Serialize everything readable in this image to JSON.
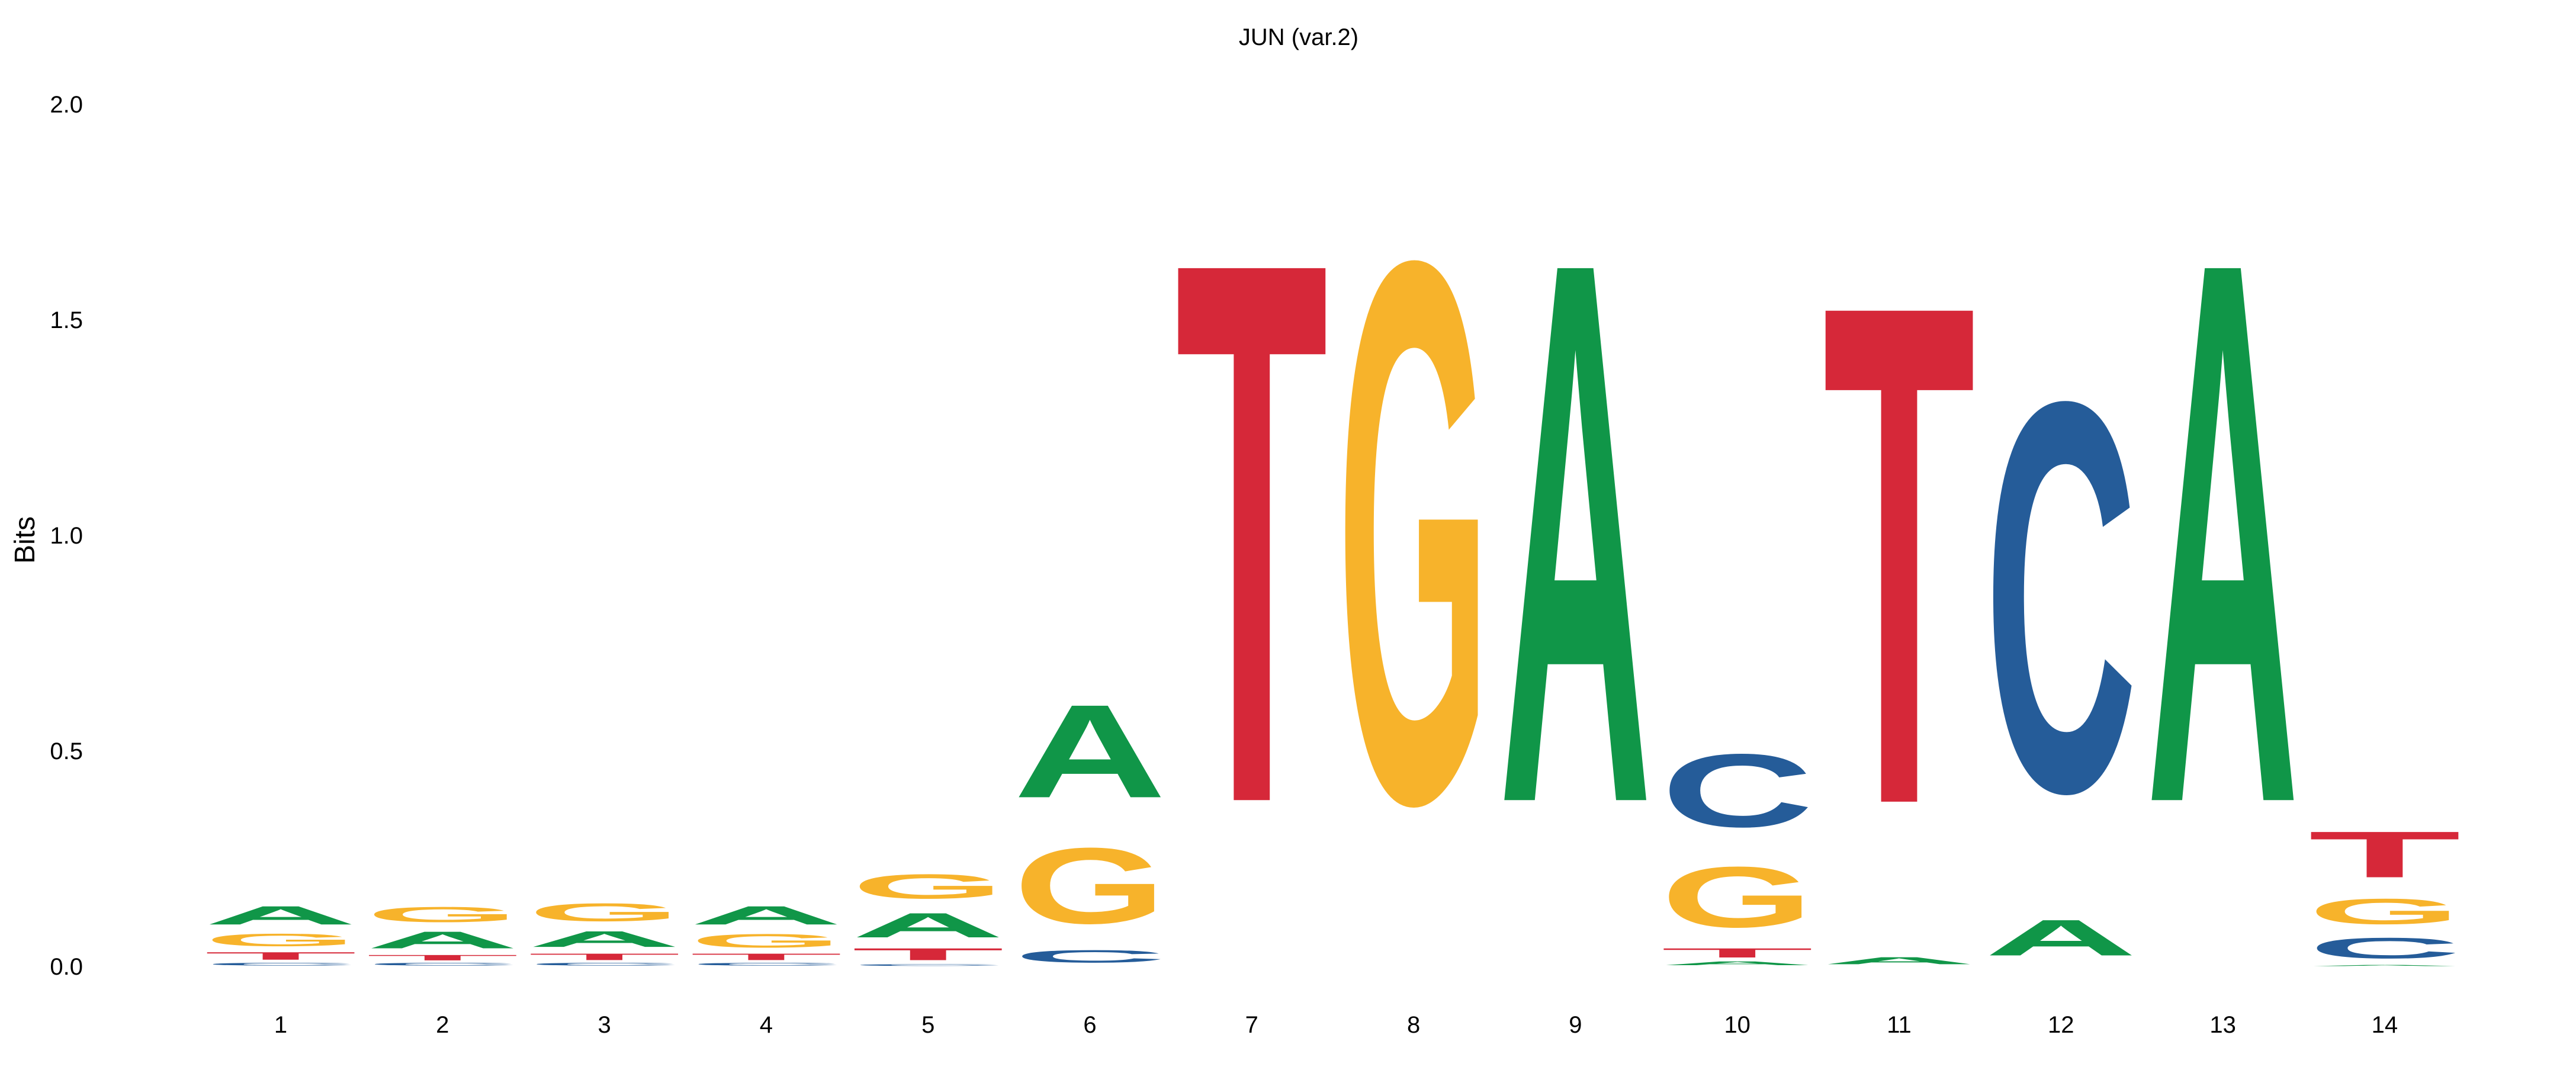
{
  "chart_data": {
    "type": "sequence-logo",
    "title": "JUN (var.2)",
    "ylabel": "Bits",
    "xlabel": "",
    "ylim": [
      0,
      2.0
    ],
    "y_ticks": [
      "0.0",
      "0.5",
      "1.0",
      "1.5",
      "2.0"
    ],
    "y_tick_values": [
      0,
      0.5,
      1.0,
      1.5,
      2.0
    ],
    "positions": [
      "1",
      "2",
      "3",
      "4",
      "5",
      "6",
      "7",
      "8",
      "9",
      "10",
      "11",
      "12",
      "13",
      "14"
    ],
    "letter_colors": {
      "A": "#109648",
      "C": "#255c99",
      "G": "#f7b32b",
      "T": "#d62839"
    },
    "columns": [
      [
        {
          "letter": "C",
          "bits": 0.01
        },
        {
          "letter": "T",
          "bits": 0.028
        },
        {
          "letter": "G",
          "bits": 0.046
        },
        {
          "letter": "A",
          "bits": 0.068
        }
      ],
      [
        {
          "letter": "C",
          "bits": 0.01
        },
        {
          "letter": "T",
          "bits": 0.02
        },
        {
          "letter": "A",
          "bits": 0.062
        },
        {
          "letter": "G",
          "bits": 0.056
        }
      ],
      [
        {
          "letter": "C",
          "bits": 0.01
        },
        {
          "letter": "T",
          "bits": 0.024
        },
        {
          "letter": "A",
          "bits": 0.058
        },
        {
          "letter": "G",
          "bits": 0.066
        }
      ],
      [
        {
          "letter": "C",
          "bits": 0.01
        },
        {
          "letter": "T",
          "bits": 0.024
        },
        {
          "letter": "G",
          "bits": 0.05
        },
        {
          "letter": "A",
          "bits": 0.068
        }
      ],
      [
        {
          "letter": "C",
          "bits": 0.006
        },
        {
          "letter": "T",
          "bits": 0.044
        },
        {
          "letter": "A",
          "bits": 0.09
        },
        {
          "letter": "G",
          "bits": 0.09
        }
      ],
      [
        {
          "letter": "C",
          "bits": 0.046
        },
        {
          "letter": "G",
          "bits": 0.28
        },
        {
          "letter": "A",
          "bits": 0.344
        }
      ],
      [
        {
          "letter": "T",
          "bits": 2.0
        }
      ],
      [
        {
          "letter": "G",
          "bits": 2.0
        }
      ],
      [
        {
          "letter": "A",
          "bits": 2.0
        }
      ],
      [
        {
          "letter": "A",
          "bits": 0.014
        },
        {
          "letter": "T",
          "bits": 0.034
        },
        {
          "letter": "G",
          "bits": 0.224
        },
        {
          "letter": "C",
          "bits": 0.27
        }
      ],
      [
        {
          "letter": "A",
          "bits": 0.026
        },
        {
          "letter": "T",
          "bits": 1.846
        }
      ],
      [
        {
          "letter": "A",
          "bits": 0.132
        },
        {
          "letter": "C",
          "bits": 1.44
        }
      ],
      [
        {
          "letter": "A",
          "bits": 2.0
        }
      ],
      [
        {
          "letter": "A",
          "bits": 0.004
        },
        {
          "letter": "C",
          "bits": 0.076
        },
        {
          "letter": "G",
          "bits": 0.094
        },
        {
          "letter": "T",
          "bits": 0.17
        }
      ]
    ]
  }
}
